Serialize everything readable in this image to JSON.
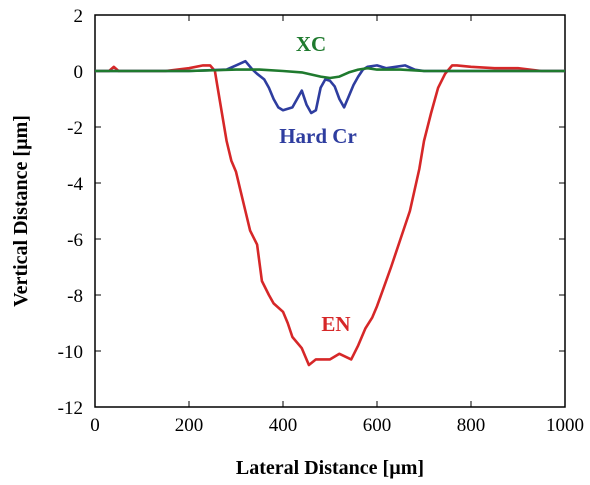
{
  "chart_data": {
    "type": "line",
    "xlabel": "Lateral Distance [µm]",
    "ylabel": "Vertical Distance [µm]",
    "xlim": [
      0,
      1000
    ],
    "ylim": [
      -12,
      2
    ],
    "xticks": [
      0,
      200,
      400,
      600,
      800,
      1000
    ],
    "yticks": [
      2,
      0,
      -2,
      -4,
      -6,
      -8,
      -10,
      -12
    ],
    "xtick_labels": [
      "0",
      "200",
      "400",
      "600",
      "800",
      "1000"
    ],
    "ytick_labels": [
      "2",
      "0",
      "-2",
      "-4",
      "-6",
      "-8",
      "-10",
      "-12"
    ],
    "grid": false,
    "legend": "inline labels",
    "series": [
      {
        "name": "EN",
        "color": "#d62728",
        "x": [
          0,
          30,
          40,
          50,
          100,
          150,
          200,
          230,
          245,
          255,
          260,
          270,
          280,
          290,
          300,
          310,
          320,
          330,
          345,
          355,
          370,
          380,
          400,
          410,
          420,
          440,
          455,
          470,
          500,
          520,
          545,
          560,
          575,
          590,
          600,
          615,
          630,
          650,
          670,
          690,
          700,
          715,
          730,
          745,
          760,
          770,
          800,
          850,
          900,
          950,
          1000
        ],
        "values": [
          0,
          0,
          0.15,
          0,
          0,
          0,
          0.1,
          0.2,
          0.2,
          0,
          -0.5,
          -1.5,
          -2.5,
          -3.2,
          -3.6,
          -4.3,
          -5.0,
          -5.7,
          -6.2,
          -7.5,
          -8.0,
          -8.3,
          -8.6,
          -9.0,
          -9.5,
          -9.9,
          -10.5,
          -10.3,
          -10.3,
          -10.1,
          -10.3,
          -9.8,
          -9.2,
          -8.8,
          -8.4,
          -7.7,
          -7.0,
          -6.0,
          -5.0,
          -3.5,
          -2.5,
          -1.5,
          -0.6,
          -0.1,
          0.2,
          0.2,
          0.15,
          0.1,
          0.1,
          0,
          0
        ]
      },
      {
        "name": "Hard Cr",
        "color": "#2e3d9f",
        "x": [
          0,
          100,
          200,
          280,
          300,
          320,
          335,
          345,
          360,
          370,
          380,
          390,
          400,
          420,
          440,
          450,
          460,
          470,
          480,
          490,
          500,
          510,
          520,
          530,
          540,
          550,
          560,
          570,
          580,
          600,
          620,
          640,
          660,
          680,
          700,
          800,
          1000
        ],
        "values": [
          0,
          0,
          0,
          0.05,
          0.2,
          0.35,
          0.05,
          -0.1,
          -0.3,
          -0.6,
          -1.0,
          -1.3,
          -1.4,
          -1.3,
          -0.7,
          -1.2,
          -1.5,
          -1.4,
          -0.6,
          -0.3,
          -0.35,
          -0.55,
          -1.0,
          -1.3,
          -0.9,
          -0.5,
          -0.2,
          0.05,
          0.15,
          0.2,
          0.1,
          0.15,
          0.2,
          0.05,
          0,
          0,
          0
        ]
      },
      {
        "name": "XC",
        "color": "#1f7a2e",
        "x": [
          0,
          200,
          300,
          350,
          400,
          440,
          480,
          500,
          520,
          540,
          560,
          580,
          600,
          650,
          700,
          1000
        ],
        "values": [
          0,
          0,
          0.05,
          0.05,
          0,
          -0.05,
          -0.2,
          -0.25,
          -0.2,
          -0.05,
          0.05,
          0.1,
          0.05,
          0.05,
          0,
          0
        ]
      }
    ]
  }
}
